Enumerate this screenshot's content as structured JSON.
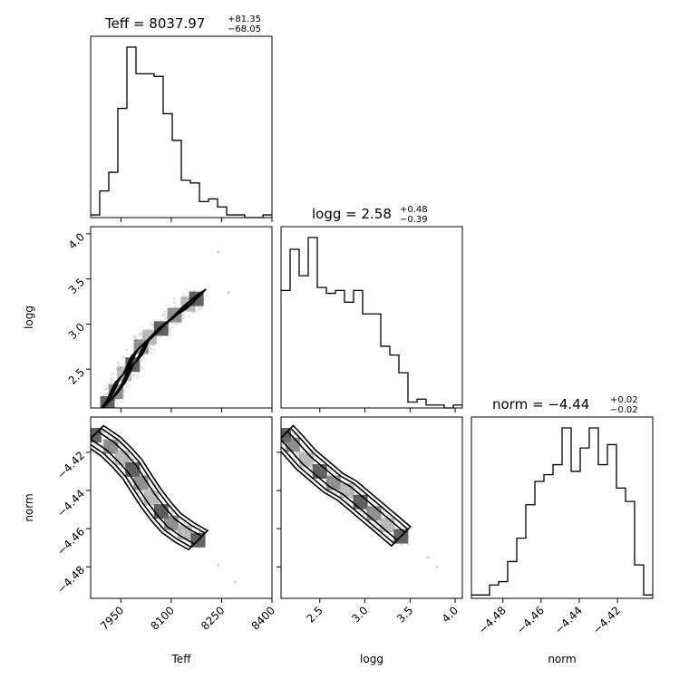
{
  "chart_data": {
    "type": "corner",
    "parameters": [
      "Teff",
      "logg",
      "norm"
    ],
    "titles": [
      {
        "param": "Teff",
        "prefix": "Teff = ",
        "median": "8037.97",
        "upper": "+81.35",
        "lower": "−68.05"
      },
      {
        "param": "logg",
        "prefix": "logg = ",
        "median": "2.58",
        "upper": "+0.48",
        "lower": "−0.39"
      },
      {
        "param": "norm",
        "prefix": "norm = ",
        "median": "−4.44",
        "upper": "+0.02",
        "lower": "−0.02"
      }
    ],
    "axes": {
      "Teff": {
        "label": "Teff",
        "range": [
          7860,
          8400
        ],
        "ticks": [
          7950,
          8100,
          8250,
          8400
        ],
        "tick_labels": [
          "7950",
          "8100",
          "8250",
          "8400"
        ]
      },
      "logg": {
        "label": "logg",
        "range": [
          2.07,
          4.08
        ],
        "ticks": [
          2.5,
          3.0,
          3.5,
          4.0
        ],
        "tick_labels": [
          "2.5",
          "3.0",
          "3.5",
          "4.0"
        ]
      },
      "norm": {
        "label": "norm",
        "range": [
          -4.4965,
          -4.4015
        ],
        "ticks": [
          -4.48,
          -4.46,
          -4.44,
          -4.42
        ],
        "tick_labels": [
          "−4.48",
          "−4.46",
          "−4.44",
          "−4.42"
        ]
      }
    },
    "histograms": {
      "Teff": {
        "edges_start": 7860,
        "bin_width": 27,
        "counts": [
          1,
          10,
          17,
          41,
          64,
          54,
          54,
          53,
          39,
          29,
          14,
          13,
          6,
          7,
          4,
          1,
          1,
          0,
          0,
          1
        ]
      },
      "logg": {
        "edges_start": 2.07,
        "bin_width": 0.1005,
        "counts": [
          40,
          54,
          45,
          58,
          41,
          39,
          40,
          36,
          40,
          32,
          32,
          21,
          18,
          12,
          2,
          3,
          1,
          1,
          0,
          1
        ]
      },
      "norm": {
        "edges_start": -4.4965,
        "bin_width": 0.00475,
        "counts": [
          1,
          1,
          4,
          5,
          11,
          18,
          28,
          35,
          37,
          40,
          51,
          38,
          45,
          51,
          40,
          46,
          33,
          29,
          10,
          1
        ]
      }
    },
    "ridges": {
      "Teff_logg": [
        [
          7910,
          2.12
        ],
        [
          7935,
          2.25
        ],
        [
          7960,
          2.45
        ],
        [
          7985,
          2.55
        ],
        [
          8010,
          2.75
        ],
        [
          8035,
          2.85
        ],
        [
          8070,
          2.95
        ],
        [
          8110,
          3.1
        ],
        [
          8150,
          3.22
        ],
        [
          8175,
          3.28
        ]
      ],
      "Teff_norm": [
        [
          7870,
          -4.411
        ],
        [
          7920,
          -4.417
        ],
        [
          7955,
          -4.423
        ],
        [
          7985,
          -4.429
        ],
        [
          8010,
          -4.436
        ],
        [
          8040,
          -4.444
        ],
        [
          8070,
          -4.451
        ],
        [
          8100,
          -4.457
        ],
        [
          8140,
          -4.462
        ],
        [
          8180,
          -4.466
        ]
      ],
      "logg_norm": [
        [
          2.1,
          -4.411
        ],
        [
          2.2,
          -4.416
        ],
        [
          2.35,
          -4.424
        ],
        [
          2.5,
          -4.43
        ],
        [
          2.65,
          -4.436
        ],
        [
          2.8,
          -4.44
        ],
        [
          2.95,
          -4.446
        ],
        [
          3.1,
          -4.452
        ],
        [
          3.25,
          -4.458
        ],
        [
          3.4,
          -4.464
        ]
      ]
    },
    "outliers": {
      "Teff_logg": [
        [
          8240,
          3.8
        ],
        [
          8270,
          3.35
        ]
      ],
      "Teff_norm": [
        [
          8240,
          -4.479
        ],
        [
          8290,
          -4.488
        ]
      ],
      "logg_norm": [
        [
          3.8,
          -4.48
        ],
        [
          3.7,
          -4.475
        ]
      ]
    }
  }
}
